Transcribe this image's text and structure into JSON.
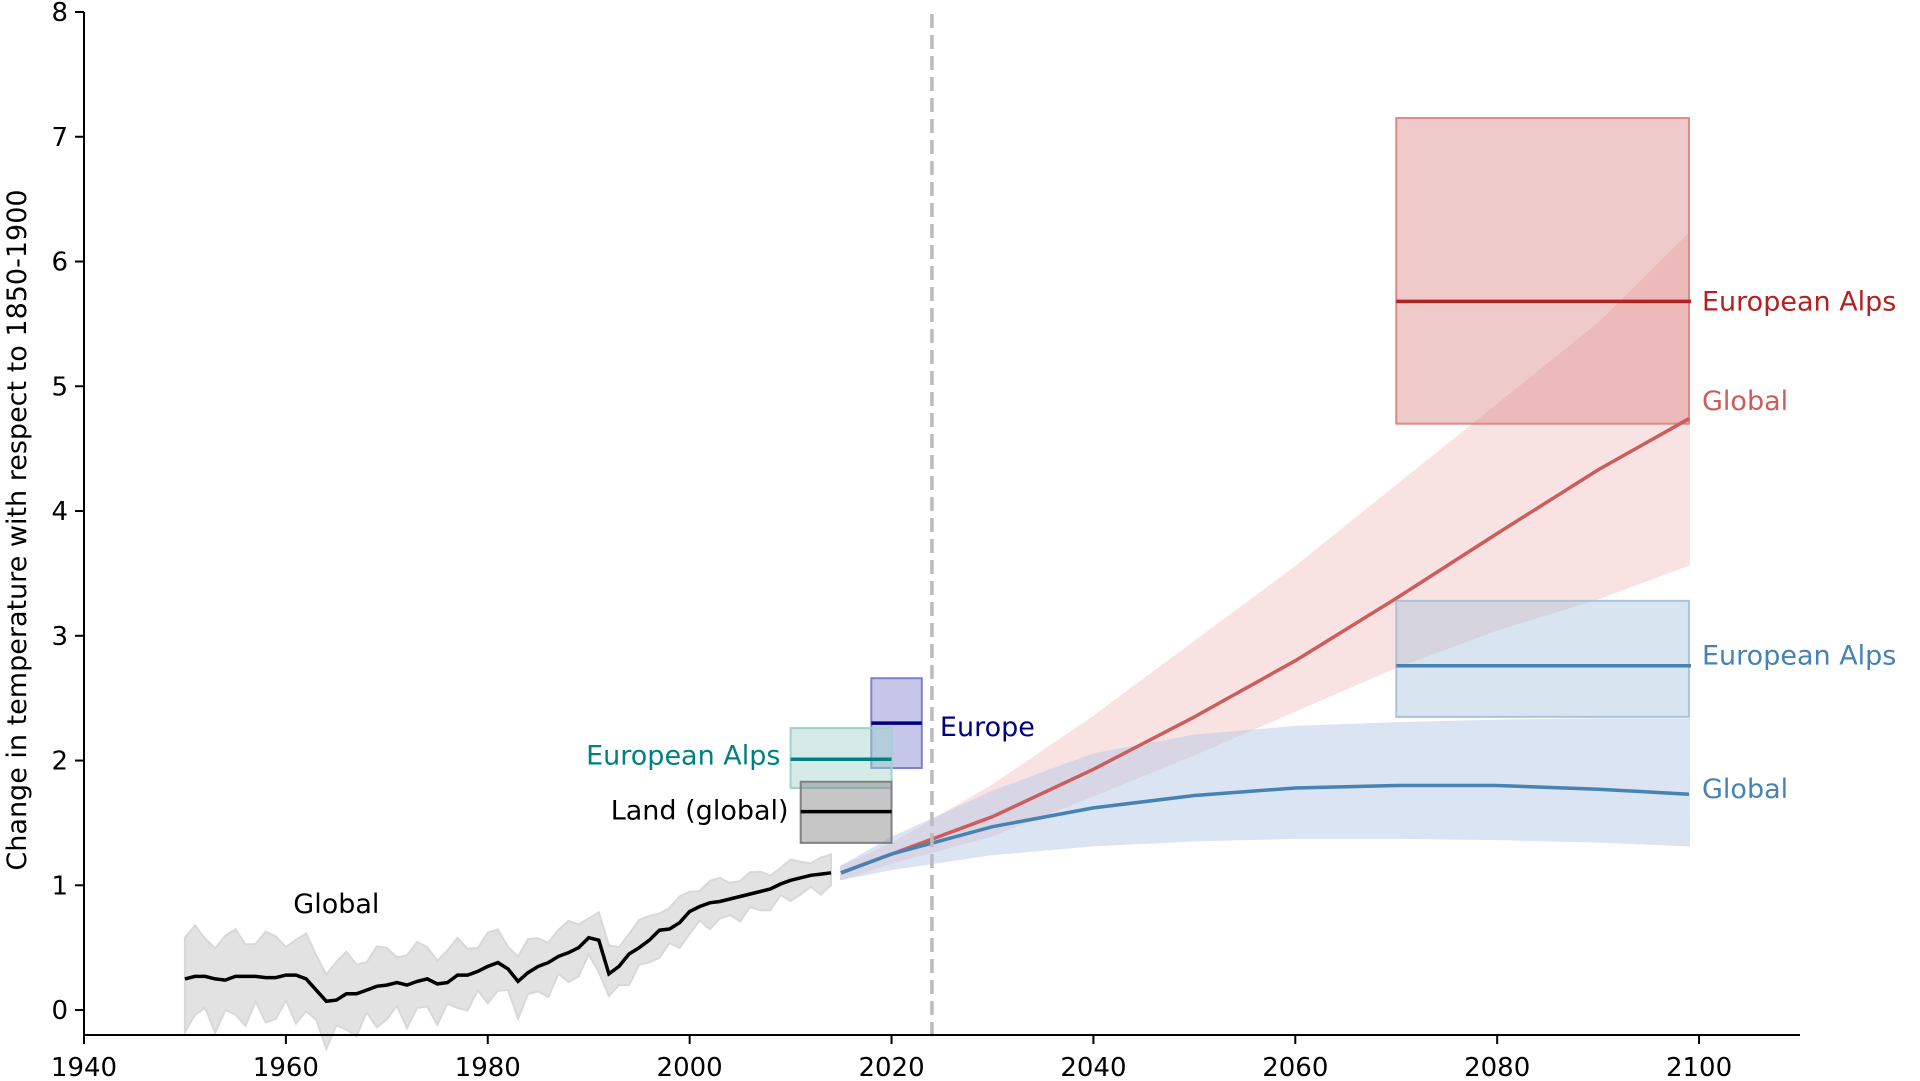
{
  "chart_data": {
    "type": "line",
    "title": "",
    "xlabel": "",
    "ylabel": "Change in temperature with respect to 1850-1900",
    "xlim": [
      1940,
      2110
    ],
    "ylim": [
      -0.2,
      8
    ],
    "xticks": [
      "1940",
      "1960",
      "1980",
      "2000",
      "2020",
      "2040",
      "2060",
      "2080",
      "2100"
    ],
    "yticks": [
      "0",
      "1",
      "2",
      "3",
      "4",
      "5",
      "6",
      "7",
      "8"
    ],
    "grid": false,
    "present_marker_year": 2024,
    "historical": {
      "name": "Global",
      "color": "#000000",
      "band_color": "#d9d9d9",
      "x_start": 1950,
      "values": [
        0.25,
        0.27,
        0.27,
        0.25,
        0.24,
        0.27,
        0.27,
        0.27,
        0.26,
        0.26,
        0.28,
        0.28,
        0.25,
        0.16,
        0.07,
        0.08,
        0.13,
        0.13,
        0.16,
        0.19,
        0.2,
        0.22,
        0.2,
        0.23,
        0.25,
        0.21,
        0.22,
        0.28,
        0.28,
        0.31,
        0.35,
        0.38,
        0.33,
        0.23,
        0.3,
        0.35,
        0.38,
        0.43,
        0.46,
        0.5,
        0.58,
        0.56,
        0.29,
        0.35,
        0.45,
        0.5,
        0.56,
        0.64,
        0.65,
        0.7,
        0.79,
        0.83,
        0.86,
        0.87,
        0.89,
        0.91,
        0.93,
        0.95,
        0.97,
        1.01,
        1.04,
        1.06,
        1.08,
        1.09,
        1.1
      ],
      "band_halfwidth": [
        0.33,
        0.12
      ]
    },
    "projections": [
      {
        "name": "Global",
        "scenario": "high",
        "color": "#cd5c5c",
        "band_color": "#f4c6c6",
        "x": [
          2015,
          2020,
          2030,
          2040,
          2050,
          2060,
          2070,
          2080,
          2090,
          2099
        ],
        "values": [
          1.1,
          1.25,
          1.55,
          1.93,
          2.35,
          2.8,
          3.3,
          3.82,
          4.33,
          4.74
        ],
        "lower": [
          1.05,
          1.18,
          1.4,
          1.72,
          2.05,
          2.4,
          2.75,
          3.05,
          3.3,
          3.57
        ],
        "upper": [
          1.15,
          1.33,
          1.8,
          2.35,
          2.95,
          3.55,
          4.2,
          4.85,
          5.5,
          6.22
        ]
      },
      {
        "name": "Global",
        "scenario": "low",
        "color": "#4682b4",
        "band_color": "#b8cbe6",
        "x": [
          2015,
          2020,
          2030,
          2040,
          2050,
          2060,
          2070,
          2080,
          2090,
          2099
        ],
        "values": [
          1.1,
          1.25,
          1.47,
          1.62,
          1.72,
          1.78,
          1.8,
          1.8,
          1.77,
          1.73
        ],
        "lower": [
          1.05,
          1.13,
          1.25,
          1.32,
          1.36,
          1.38,
          1.38,
          1.37,
          1.35,
          1.32
        ],
        "upper": [
          1.15,
          1.38,
          1.75,
          2.05,
          2.2,
          2.27,
          2.3,
          2.32,
          2.33,
          2.33
        ]
      }
    ],
    "boxes": [
      {
        "name": "European Alps",
        "color": "#b22222",
        "fill": "#dc8a8a",
        "x": [
          2070,
          2099
        ],
        "range": [
          4.7,
          7.15
        ],
        "median": 5.68
      },
      {
        "name": "European Alps",
        "color": "#4682b4",
        "fill": "#a9c4dc",
        "x": [
          2070,
          2099
        ],
        "range": [
          2.35,
          3.28
        ],
        "median": 2.76
      },
      {
        "name": "Europe",
        "color": "#000080",
        "fill": "#8080cc",
        "x": [
          2018,
          2023
        ],
        "range": [
          1.94,
          2.66
        ],
        "median": 2.3
      },
      {
        "name": "European Alps",
        "color": "#008080",
        "fill": "#9fd2cc",
        "x": [
          2010,
          2020
        ],
        "range": [
          1.78,
          2.26
        ],
        "median": 2.01
      },
      {
        "name": "Land (global)",
        "color": "#000000",
        "fill": "#808080",
        "x": [
          2011,
          2020
        ],
        "range": [
          1.34,
          1.83
        ],
        "median": 1.59
      }
    ],
    "annotations": [
      {
        "text": "European Alps",
        "color": "#b22222",
        "x": 2099.5,
        "y": 5.68,
        "anchor": "start"
      },
      {
        "text": "Global",
        "color": "#cd5c5c",
        "x": 2099.5,
        "y": 4.88,
        "anchor": "start"
      },
      {
        "text": "European Alps",
        "color": "#4682b4",
        "x": 2099.5,
        "y": 2.84,
        "anchor": "start"
      },
      {
        "text": "Global",
        "color": "#4682b4",
        "x": 2099.5,
        "y": 1.77,
        "anchor": "start"
      },
      {
        "text": "Europe",
        "color": "#000080",
        "x": 2024,
        "y": 2.27,
        "anchor": "start"
      },
      {
        "text": "European Alps",
        "color": "#008080",
        "x": 2009,
        "y": 2.04,
        "anchor": "end"
      },
      {
        "text": "Land (global)",
        "color": "#000000",
        "x": 2009.8,
        "y": 1.6,
        "anchor": "end"
      },
      {
        "text": "Global",
        "color": "#000000",
        "x": 1965,
        "y": 0.85,
        "anchor": "middle"
      }
    ]
  }
}
